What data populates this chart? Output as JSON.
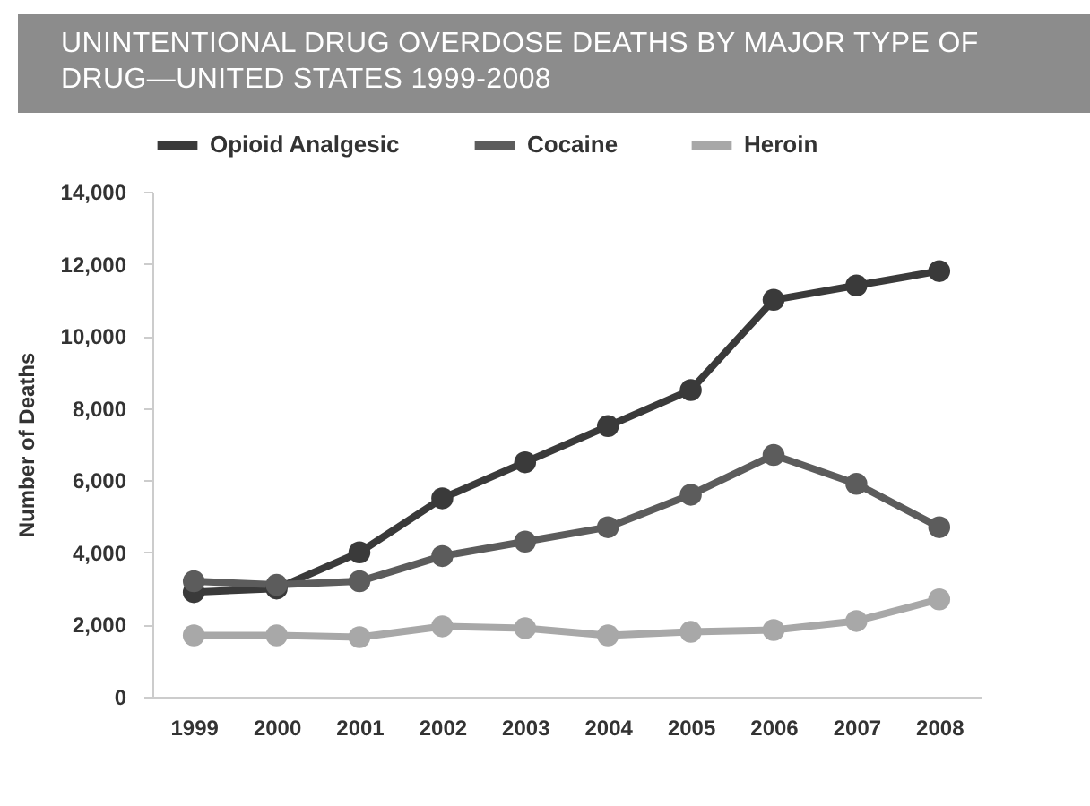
{
  "chart_data": {
    "type": "line",
    "title": "UNINTENTIONAL DRUG OVERDOSE DEATHS BY MAJOR TYPE OF DRUG—UNITED STATES 1999-2008",
    "ylabel": "Number of Deaths",
    "categories": [
      "1999",
      "2000",
      "2001",
      "2002",
      "2003",
      "2004",
      "2005",
      "2006",
      "2007",
      "2008"
    ],
    "series": [
      {
        "name": "Opioid Analgesic",
        "color": "#3a3a3a",
        "values": [
          2900,
          3000,
          4000,
          5500,
          6500,
          7500,
          8500,
          11000,
          11400,
          11800
        ]
      },
      {
        "name": "Cocaine",
        "color": "#5c5c5c",
        "values": [
          3200,
          3100,
          3200,
          3900,
          4300,
          4700,
          5600,
          6700,
          5900,
          4700
        ]
      },
      {
        "name": "Heroin",
        "color": "#a8a8a8",
        "values": [
          1700,
          1700,
          1650,
          1950,
          1900,
          1700,
          1800,
          1850,
          2100,
          2700
        ]
      }
    ],
    "ylim": [
      0,
      14000
    ],
    "yticks": [
      0,
      {
        "value": 2000,
        "label": "2,000"
      },
      {
        "value": 4000,
        "label": "4,000"
      },
      {
        "value": 6000,
        "label": "6,000"
      },
      {
        "value": 8000,
        "label": "8,000"
      },
      {
        "value": 10000,
        "label": "10,000"
      },
      {
        "value": 12000,
        "label": "12,000"
      },
      {
        "value": 14000,
        "label": "14,000"
      }
    ],
    "grid": false,
    "legend": "top",
    "marker": "circle",
    "line_style": "solid"
  }
}
